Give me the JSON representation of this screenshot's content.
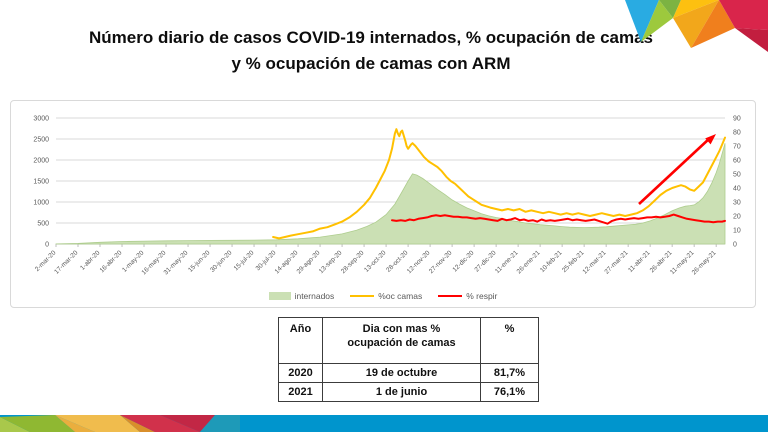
{
  "title": {
    "line1": "Número diario de casos COVID-19 internados, % ocupación de camas",
    "line2": "y % ocupación de camas con ARM"
  },
  "legend": {
    "items": [
      {
        "label": "internados",
        "swatch": "area",
        "color": "#cbe0b4"
      },
      {
        "label": "%oc camas",
        "swatch": "line",
        "color": "#ffc000"
      },
      {
        "label": "% respir",
        "swatch": "line",
        "color": "#ff0000"
      }
    ]
  },
  "chart_data": {
    "type": "area+line",
    "grid": true,
    "legend_position": "bottom",
    "left_axis": {
      "min": 0,
      "max": 3000,
      "ticks": [
        0,
        500,
        1000,
        1500,
        2000,
        2500,
        3000
      ]
    },
    "right_axis": {
      "min": 0,
      "max": 90,
      "ticks": [
        0,
        10,
        20,
        30,
        40,
        50,
        60,
        70,
        80,
        90
      ]
    },
    "x_tick_interval_days": 15,
    "total_days": 456,
    "x_tick_labels": [
      "2-mar-20",
      "17-mar-20",
      "1-abr-20",
      "16-abr-20",
      "1-may-20",
      "16-may-20",
      "31-may-20",
      "15-jun-20",
      "30-jun-20",
      "15-jul-20",
      "30-jul-20",
      "14-ago-20",
      "29-ago-20",
      "13-sep-20",
      "28-sep-20",
      "13-oct-20",
      "28-oct-20",
      "12-nov-20",
      "27-nov-20",
      "12-dic-20",
      "27-dic-20",
      "11-ene-21",
      "26-ene-21",
      "10-feb-21",
      "25-feb-21",
      "12-mar-21",
      "27-mar-21",
      "11-abr-21",
      "26-abr-21",
      "11-may-21",
      "26-may-21"
    ],
    "series": [
      {
        "name": "internados",
        "type": "area",
        "axis": "left",
        "color": "#cbe0b4",
        "edge": "#aecd8e",
        "points": [
          [
            0,
            3
          ],
          [
            15,
            15
          ],
          [
            30,
            40
          ],
          [
            45,
            60
          ],
          [
            61,
            70
          ],
          [
            76,
            75
          ],
          [
            90,
            80
          ],
          [
            105,
            85
          ],
          [
            120,
            88
          ],
          [
            135,
            92
          ],
          [
            150,
            100
          ],
          [
            165,
            125
          ],
          [
            180,
            165
          ],
          [
            195,
            240
          ],
          [
            205,
            330
          ],
          [
            212,
            420
          ],
          [
            218,
            520
          ],
          [
            225,
            700
          ],
          [
            231,
            950
          ],
          [
            236,
            1250
          ],
          [
            240,
            1500
          ],
          [
            243,
            1670
          ],
          [
            246,
            1640
          ],
          [
            250,
            1560
          ],
          [
            255,
            1430
          ],
          [
            260,
            1300
          ],
          [
            265,
            1180
          ],
          [
            270,
            1050
          ],
          [
            275,
            950
          ],
          [
            280,
            860
          ],
          [
            285,
            790
          ],
          [
            290,
            720
          ],
          [
            295,
            670
          ],
          [
            300,
            630
          ],
          [
            305,
            600
          ],
          [
            310,
            560
          ],
          [
            315,
            530
          ],
          [
            320,
            500
          ],
          [
            325,
            480
          ],
          [
            330,
            460
          ],
          [
            335,
            445
          ],
          [
            340,
            430
          ],
          [
            345,
            415
          ],
          [
            350,
            400
          ],
          [
            355,
            395
          ],
          [
            360,
            390
          ],
          [
            365,
            395
          ],
          [
            370,
            400
          ],
          [
            375,
            410
          ],
          [
            380,
            425
          ],
          [
            385,
            440
          ],
          [
            390,
            455
          ],
          [
            395,
            470
          ],
          [
            400,
            500
          ],
          [
            405,
            550
          ],
          [
            410,
            620
          ],
          [
            415,
            700
          ],
          [
            420,
            790
          ],
          [
            425,
            860
          ],
          [
            429,
            900
          ],
          [
            432,
            915
          ],
          [
            435,
            930
          ],
          [
            438,
            1000
          ],
          [
            441,
            1100
          ],
          [
            444,
            1250
          ],
          [
            447,
            1450
          ],
          [
            450,
            1700
          ],
          [
            452,
            1900
          ],
          [
            454,
            2150
          ],
          [
            456,
            2400
          ]
        ]
      },
      {
        "name": "%oc camas",
        "type": "line",
        "axis": "right",
        "color": "#ffc000",
        "points": [
          [
            148,
            5
          ],
          [
            152,
            4
          ],
          [
            156,
            5
          ],
          [
            160,
            6
          ],
          [
            165,
            7
          ],
          [
            170,
            8
          ],
          [
            175,
            9
          ],
          [
            180,
            11
          ],
          [
            185,
            12
          ],
          [
            190,
            14
          ],
          [
            195,
            16
          ],
          [
            200,
            19
          ],
          [
            205,
            23
          ],
          [
            210,
            28
          ],
          [
            214,
            33
          ],
          [
            218,
            40
          ],
          [
            221,
            46
          ],
          [
            224,
            52
          ],
          [
            227,
            60
          ],
          [
            229,
            68
          ],
          [
            231,
            79
          ],
          [
            232,
            82
          ],
          [
            233,
            79
          ],
          [
            234,
            77
          ],
          [
            235,
            80
          ],
          [
            236,
            81
          ],
          [
            238,
            74
          ],
          [
            239,
            70
          ],
          [
            240,
            68
          ],
          [
            242,
            71
          ],
          [
            243,
            72
          ],
          [
            245,
            70
          ],
          [
            248,
            66
          ],
          [
            251,
            62
          ],
          [
            254,
            59
          ],
          [
            257,
            57
          ],
          [
            260,
            55
          ],
          [
            263,
            52
          ],
          [
            266,
            48
          ],
          [
            269,
            45
          ],
          [
            272,
            43
          ],
          [
            275,
            40
          ],
          [
            278,
            37
          ],
          [
            281,
            34
          ],
          [
            284,
            32
          ],
          [
            287,
            30
          ],
          [
            290,
            28
          ],
          [
            293,
            27
          ],
          [
            296,
            26
          ],
          [
            300,
            25
          ],
          [
            304,
            24
          ],
          [
            308,
            25
          ],
          [
            312,
            24
          ],
          [
            316,
            25
          ],
          [
            320,
            23
          ],
          [
            324,
            24
          ],
          [
            328,
            23
          ],
          [
            332,
            22
          ],
          [
            336,
            23
          ],
          [
            340,
            22
          ],
          [
            344,
            21
          ],
          [
            348,
            22
          ],
          [
            352,
            21
          ],
          [
            356,
            22
          ],
          [
            360,
            21
          ],
          [
            364,
            20
          ],
          [
            368,
            21
          ],
          [
            372,
            22
          ],
          [
            376,
            21
          ],
          [
            380,
            20
          ],
          [
            384,
            21
          ],
          [
            388,
            20
          ],
          [
            392,
            21
          ],
          [
            396,
            22
          ],
          [
            400,
            24
          ],
          [
            404,
            27
          ],
          [
            408,
            31
          ],
          [
            412,
            35
          ],
          [
            416,
            38
          ],
          [
            420,
            40
          ],
          [
            423,
            41
          ],
          [
            426,
            42
          ],
          [
            429,
            41
          ],
          [
            432,
            39
          ],
          [
            435,
            38
          ],
          [
            438,
            41
          ],
          [
            441,
            44
          ],
          [
            444,
            50
          ],
          [
            447,
            56
          ],
          [
            450,
            62
          ],
          [
            452,
            66
          ],
          [
            454,
            71
          ],
          [
            456,
            76
          ]
        ]
      },
      {
        "name": "% respir",
        "type": "line",
        "axis": "right",
        "color": "#ff0000",
        "points": [
          [
            229,
            17
          ],
          [
            232,
            16.5
          ],
          [
            235,
            17
          ],
          [
            238,
            16.5
          ],
          [
            241,
            17.5
          ],
          [
            244,
            17
          ],
          [
            247,
            18
          ],
          [
            250,
            18.5
          ],
          [
            253,
            19
          ],
          [
            256,
            20
          ],
          [
            259,
            20.5
          ],
          [
            262,
            20
          ],
          [
            265,
            20.5
          ],
          [
            268,
            20
          ],
          [
            271,
            19.5
          ],
          [
            274,
            19.5
          ],
          [
            277,
            19
          ],
          [
            280,
            19
          ],
          [
            283,
            18.5
          ],
          [
            286,
            18
          ],
          [
            289,
            18.5
          ],
          [
            292,
            18
          ],
          [
            295,
            17.5
          ],
          [
            298,
            17
          ],
          [
            301,
            16.5
          ],
          [
            304,
            18
          ],
          [
            307,
            17
          ],
          [
            310,
            17.5
          ],
          [
            313,
            18.5
          ],
          [
            316,
            17
          ],
          [
            319,
            17.5
          ],
          [
            322,
            16.5
          ],
          [
            325,
            17
          ],
          [
            328,
            16
          ],
          [
            331,
            17.5
          ],
          [
            334,
            16.5
          ],
          [
            337,
            17
          ],
          [
            340,
            16.5
          ],
          [
            343,
            17
          ],
          [
            346,
            17.5
          ],
          [
            349,
            18
          ],
          [
            352,
            17
          ],
          [
            355,
            17.5
          ],
          [
            358,
            17
          ],
          [
            361,
            16.5
          ],
          [
            364,
            17
          ],
          [
            367,
            17.5
          ],
          [
            370,
            16.5
          ],
          [
            373,
            15.5
          ],
          [
            376,
            14.5
          ],
          [
            379,
            16.5
          ],
          [
            382,
            17.5
          ],
          [
            385,
            18
          ],
          [
            388,
            17.5
          ],
          [
            391,
            18
          ],
          [
            394,
            18.5
          ],
          [
            397,
            18
          ],
          [
            400,
            18.5
          ],
          [
            403,
            19
          ],
          [
            406,
            19
          ],
          [
            409,
            19.5
          ],
          [
            412,
            19
          ],
          [
            415,
            19.5
          ],
          [
            418,
            20
          ],
          [
            421,
            21
          ],
          [
            424,
            20
          ],
          [
            427,
            19
          ],
          [
            430,
            18
          ],
          [
            433,
            17.5
          ],
          [
            436,
            17
          ],
          [
            439,
            16.5
          ],
          [
            442,
            16
          ],
          [
            445,
            16
          ],
          [
            448,
            15.5
          ],
          [
            451,
            16
          ],
          [
            454,
            16
          ],
          [
            456,
            16.5
          ]
        ]
      }
    ],
    "annotation_arrow": {
      "color": "#ff0000",
      "direction": "up-right"
    }
  },
  "table": {
    "headers": [
      "Año",
      "Dia con mas %\nocupación de camas",
      "%"
    ],
    "rows": [
      [
        "2020",
        "19 de octubre",
        "81,7%"
      ],
      [
        "2021",
        "1 de junio",
        "76,1%"
      ]
    ]
  },
  "colors": {
    "footer_bar": "#0095cd",
    "grid_line": "#d9d9d9",
    "axis_line": "#bfbfbf",
    "axis_text": "#595959"
  }
}
